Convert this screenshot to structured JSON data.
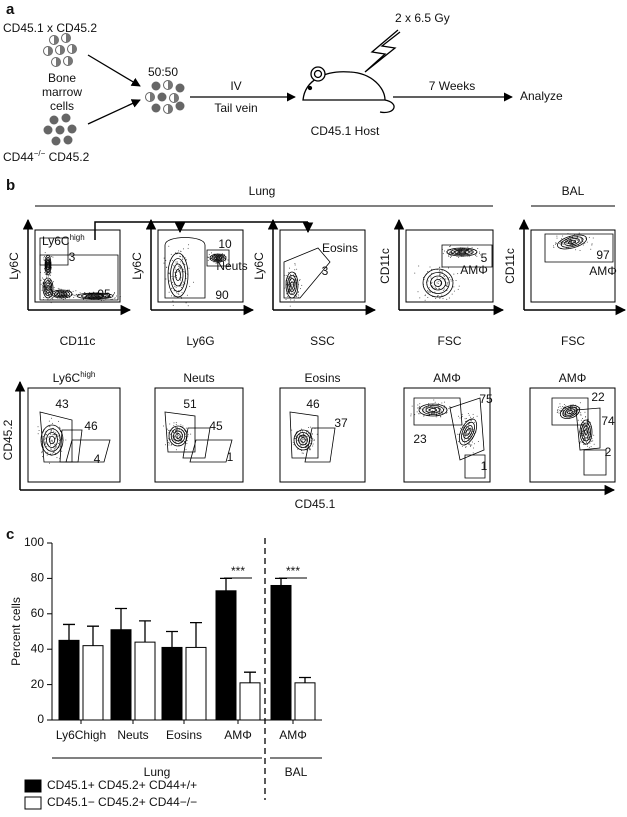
{
  "panel_a": {
    "label": "a",
    "donor1": "CD45.1 x CD45.2",
    "bone_marrow": [
      "Bone",
      "marrow",
      "cells"
    ],
    "donor2": {
      "text": "CD44",
      "sup": "−/−",
      "rest": " CD45.2"
    },
    "ratio": "50:50",
    "route": [
      "IV",
      "Tail vein"
    ],
    "irradiation": "2 x 6.5 Gy",
    "host": "CD45.1 Host",
    "time": "7 Weeks",
    "readout": "Analyze"
  },
  "panel_b": {
    "label": "b",
    "lung": "Lung",
    "bal": "BAL",
    "top_plots": [
      {
        "y_label": "Ly6C",
        "x_label": "CD11c",
        "gates": [
          {
            "text": "Ly6C",
            "sup": "high"
          },
          "3",
          "95"
        ]
      },
      {
        "y_label": "Ly6C",
        "x_label": "Ly6G",
        "gates": [
          "10",
          "Neuts",
          "90"
        ]
      },
      {
        "y_label": "Ly6C",
        "x_label": "SSC",
        "gates": [
          "Eosins",
          "3"
        ]
      },
      {
        "y_label": "CD11c",
        "x_label": "FSC",
        "gates": [
          "5",
          "AMΦ"
        ]
      },
      {
        "y_label": "CD11c",
        "x_label": "FSC",
        "gates": [
          "97",
          "AMΦ"
        ]
      }
    ],
    "bottom_plots": [
      {
        "title": {
          "text": "Ly6C",
          "sup": "high"
        },
        "gates": [
          "43",
          "46",
          "4"
        ]
      },
      {
        "title": "Neuts",
        "gates": [
          "51",
          "45",
          "1"
        ]
      },
      {
        "title": "Eosins",
        "gates": [
          "46",
          "37"
        ]
      },
      {
        "title": "AMΦ",
        "gates": [
          "75",
          "23",
          "1"
        ]
      },
      {
        "title": "AMΦ",
        "gates": [
          "22",
          "74",
          "2"
        ]
      }
    ],
    "y_label": "CD45.2",
    "x_label": "CD45.1"
  },
  "panel_c_label": "c",
  "chart_data": {
    "type": "bar",
    "y_label": "Percent cells",
    "categories": [
      "Ly6Chigh",
      "Neuts",
      "Eosins",
      "AMΦ",
      "AMΦ"
    ],
    "series": [
      {
        "name": "CD45.1+ CD45.2+ CD44+/+",
        "color": "#000000",
        "values": [
          45,
          51,
          41,
          73,
          76
        ],
        "errors": [
          9,
          12,
          9,
          7,
          4
        ]
      },
      {
        "name": "CD45.1− CD45.2+ CD44−/−",
        "color": "#ffffff",
        "values": [
          42,
          44,
          41,
          21,
          21
        ],
        "errors": [
          11,
          12,
          14,
          6,
          3
        ]
      }
    ],
    "ylim": [
      0,
      100
    ],
    "yticks": [
      0,
      20,
      40,
      60,
      80,
      100
    ],
    "annotations": [
      "***",
      "***"
    ],
    "group_labels": [
      "Lung",
      "BAL"
    ],
    "legend": "bottom-left"
  }
}
